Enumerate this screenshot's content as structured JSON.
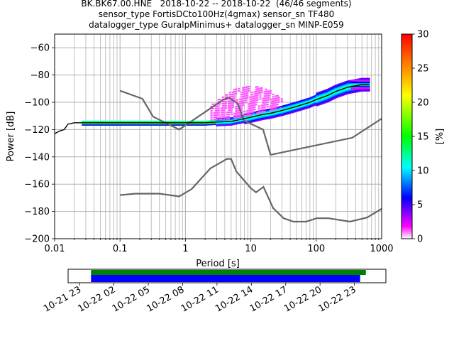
{
  "title_lines": [
    "BK.BK67.00.HNE   2018-10-22 -- 2018-10-22  (46/46 segments)",
    "sensor_type FortisDCto100Hz(4gmax) sensor_sn TF480",
    "datalogger_type GuralpMinimus+ datalogger_sn MINP-E059"
  ],
  "chart_data": [
    {
      "type": "heatmap",
      "title": "BK.BK67.00.HNE   2018-10-22 -- 2018-10-22  (46/46 segments)",
      "xlabel": "Period [s]",
      "ylabel": "Power [dB]",
      "xscale": "log",
      "xlim": [
        0.01,
        1000
      ],
      "ylim": [
        -200,
        -50
      ],
      "xticks": [
        "0.01",
        "0.1",
        "1",
        "10",
        "100",
        "1000"
      ],
      "yticks": [
        -60,
        -80,
        -100,
        -120,
        -140,
        -160,
        -180,
        -200
      ],
      "grid": true,
      "colorbar": {
        "label": "[%]",
        "range": [
          0,
          30
        ],
        "ticks": [
          0,
          5,
          10,
          15,
          20,
          25,
          30
        ],
        "colormap": "pqlx"
      },
      "mean_curve": {
        "x": [
          0.01,
          0.012,
          0.014,
          0.016,
          0.02,
          0.05,
          0.1,
          0.3,
          1,
          2,
          3,
          5,
          8,
          10,
          15,
          20,
          30,
          50,
          80,
          100,
          150,
          200,
          300,
          500,
          650
        ],
        "y": [
          -123,
          -121,
          -120,
          -116,
          -115,
          -115,
          -115,
          -115,
          -115,
          -115,
          -114.5,
          -114,
          -112,
          -111,
          -109,
          -108,
          -106,
          -103,
          -100,
          -98,
          -95,
          -92,
          -89,
          -87,
          -87
        ]
      },
      "noise_models": [
        {
          "x": [
            0.1,
            0.17,
            0.4,
            0.8,
            1.24,
            2.4,
            4.3,
            5,
            6,
            10,
            12,
            15.6,
            21.9,
            31.6,
            45,
            70,
            101,
            154,
            328,
            600,
            1000
          ],
          "y": [
            -168,
            -167,
            -167,
            -169,
            -163.7,
            -148.5,
            -141.5,
            -141.5,
            -150.6,
            -163,
            -166,
            -162,
            -177.5,
            -185,
            -187.5,
            -187.5,
            -185,
            -185,
            -187.5,
            -184.5,
            -178
          ]
        },
        {
          "x": [
            0.1,
            0.22,
            0.32,
            0.8,
            3.8,
            4.6,
            6.3,
            7.9,
            15.4,
            20,
            354.8,
            1000
          ],
          "y": [
            -91.5,
            -97.4,
            -110.5,
            -120,
            -98,
            -96.5,
            -101,
            -113.5,
            -120,
            -138.5,
            -126,
            -112
          ]
        }
      ],
      "ppsd_cells": [
        {
          "x": 0.03,
          "y": -115,
          "pct": 12
        },
        {
          "x": 0.5,
          "y": -115,
          "pct": 20
        },
        {
          "x": 3,
          "y": -113,
          "pct": 10
        },
        {
          "x": 5,
          "y": -102,
          "pct": 1
        },
        {
          "x": 8,
          "y": -95,
          "pct": 1
        },
        {
          "x": 10,
          "y": -89,
          "pct": 1
        },
        {
          "x": 15,
          "y": -105,
          "pct": 3
        },
        {
          "x": 30,
          "y": -105,
          "pct": 6
        },
        {
          "x": 100,
          "y": -98,
          "pct": 10
        },
        {
          "x": 200,
          "y": -91,
          "pct": 15
        },
        {
          "x": 500,
          "y": -85,
          "pct": 3
        },
        {
          "x": 500,
          "y": -89,
          "pct": 6
        }
      ]
    },
    {
      "type": "bar",
      "title": "",
      "xlabel": "",
      "ylabel": "",
      "xticks": [
        "10-21 23",
        "10-22 02",
        "10-22 05",
        "10-22 08",
        "10-22 11",
        "10-22 14",
        "10-22 17",
        "10-22 20",
        "10-22 23"
      ],
      "xlim": [
        "2018-10-21 22:00",
        "2018-10-23 01:45"
      ],
      "series": [
        {
          "color": "#008000",
          "start": "2018-10-22 00:00",
          "end": "2018-10-23 00:00"
        },
        {
          "color": "#0000ff",
          "start": "2018-10-22 00:00",
          "end": "2018-10-22 23:30"
        }
      ]
    }
  ]
}
